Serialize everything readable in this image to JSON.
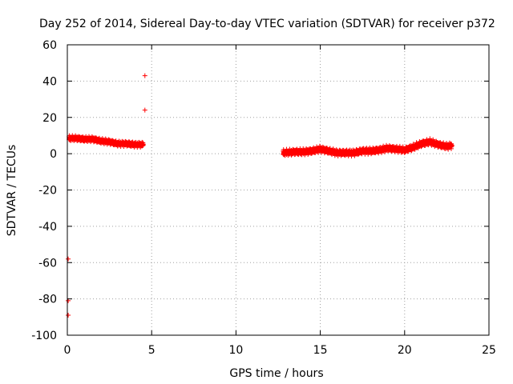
{
  "chart_data": {
    "type": "scatter",
    "title": "Day 252 of 2014, Sidereal Day-to-day VTEC variation (SDTVAR) for receiver p372",
    "xlabel": "GPS time / hours",
    "ylabel": "SDTVAR / TECUs",
    "xlim": [
      0,
      25
    ],
    "ylim": [
      -100,
      60
    ],
    "xticks": [
      0,
      5,
      10,
      15,
      20,
      25
    ],
    "yticks": [
      -100,
      -80,
      -60,
      -40,
      -20,
      0,
      20,
      40,
      60
    ],
    "grid": true,
    "marker": "+",
    "series_color": "#ff0000",
    "series": [
      {
        "name": "SDTVAR",
        "outliers": [
          {
            "x": 4.6,
            "y": 43
          },
          {
            "x": 4.6,
            "y": 24
          },
          {
            "x": 0.05,
            "y": -58
          },
          {
            "x": 0.05,
            "y": -81
          },
          {
            "x": 0.05,
            "y": -89
          }
        ],
        "segments": [
          {
            "x": [
              0.1,
              0.5,
              1.0,
              1.5,
              2.0,
              2.5,
              3.0,
              3.5,
              4.0,
              4.5
            ],
            "y": [
              8.5,
              8.5,
              8.0,
              8.0,
              7.0,
              6.5,
              5.5,
              5.5,
              5.0,
              5.0
            ],
            "spread": 1.5
          },
          {
            "x": [
              12.8,
              13.5,
              14.0,
              14.5,
              15.0,
              15.5,
              16.0,
              16.5,
              17.0,
              17.5,
              18.0,
              18.5,
              19.0,
              19.5,
              20.0,
              20.5,
              21.0,
              21.5,
              22.0,
              22.5,
              22.8
            ],
            "y": [
              0.5,
              1.0,
              1.0,
              1.5,
              2.5,
              1.5,
              0.5,
              0.5,
              0.5,
              1.5,
              1.5,
              2.0,
              3.0,
              2.5,
              2.0,
              3.5,
              5.5,
              6.5,
              5.0,
              4.0,
              4.5
            ],
            "spread": 1.8
          }
        ]
      }
    ]
  }
}
